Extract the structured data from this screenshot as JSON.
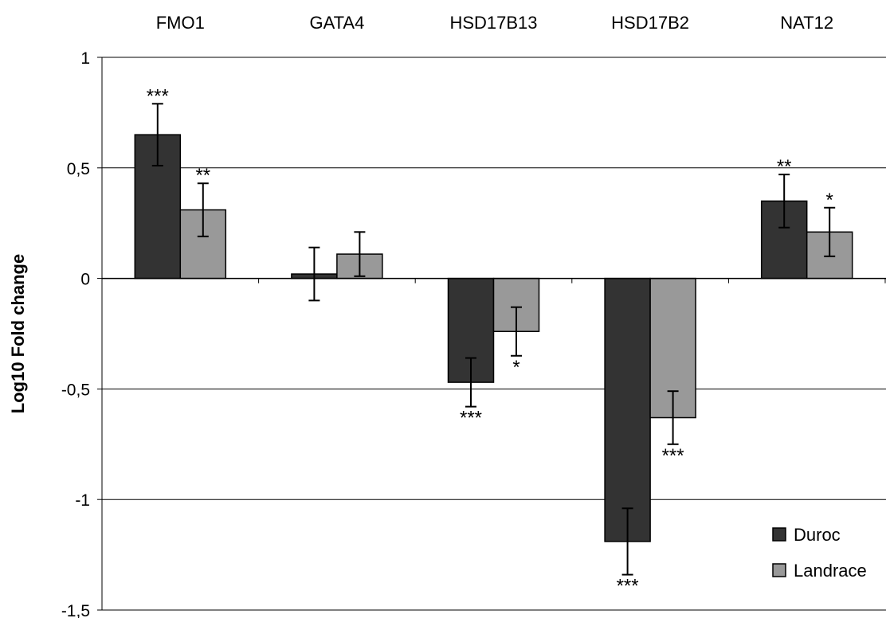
{
  "chart_data": {
    "type": "bar",
    "title": "",
    "xlabel": "",
    "ylabel": "Log10 Fold change",
    "ylim": [
      -1.5,
      1
    ],
    "yticks": [
      1,
      0.5,
      0,
      -0.5,
      -1,
      -1.5
    ],
    "ytick_labels": [
      "1",
      "0,5",
      "0",
      "-0,5",
      "-1",
      "-1,5"
    ],
    "grid": true,
    "categories": [
      "FMO1",
      "GATA4",
      "HSD17B13",
      "HSD17B2",
      "NAT12"
    ],
    "category_label_position": "top",
    "legend_position": "bottom-right",
    "series": [
      {
        "name": "Duroc",
        "color": "#333333",
        "values": [
          0.65,
          0.02,
          -0.47,
          -1.19,
          0.35
        ],
        "error": [
          0.14,
          0.12,
          0.11,
          0.15,
          0.12
        ],
        "significance": [
          "***",
          "",
          "***",
          "***",
          "**"
        ]
      },
      {
        "name": "Landrace",
        "color": "#999999",
        "values": [
          0.31,
          0.11,
          -0.24,
          -0.63,
          0.21
        ],
        "error": [
          0.12,
          0.1,
          0.11,
          0.12,
          0.11
        ],
        "significance": [
          "**",
          "",
          "*",
          "***",
          "*"
        ]
      }
    ]
  }
}
